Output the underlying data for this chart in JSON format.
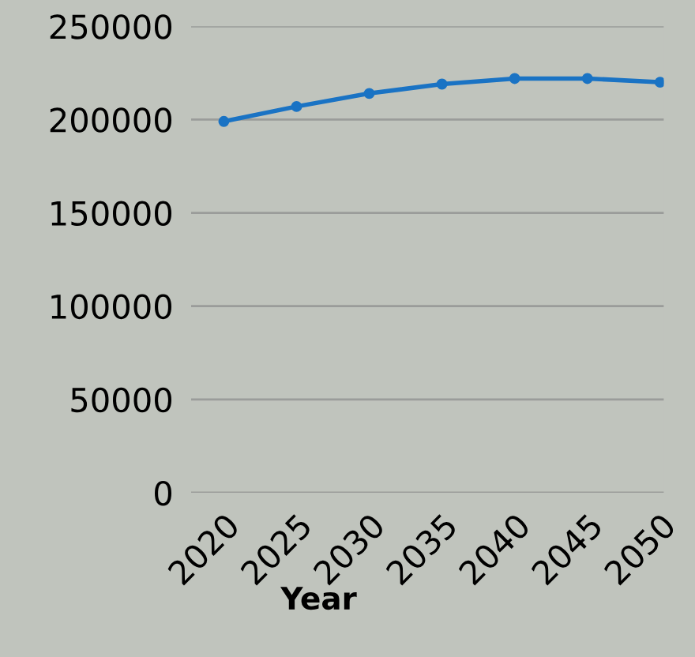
{
  "chart_data": {
    "type": "line",
    "xlabel": "Year",
    "categories": [
      "2020",
      "2025",
      "2030",
      "2035",
      "2040",
      "2045",
      "2050"
    ],
    "series": [
      {
        "color": "#1a73c4",
        "values": [
          199000,
          207000,
          214000,
          219000,
          222000,
          222000,
          220000
        ]
      }
    ],
    "ylim": [
      0,
      250000
    ],
    "yticks": [
      0,
      50000,
      100000,
      150000,
      200000,
      250000
    ],
    "grid": "y",
    "marker": "circle",
    "line_style": "solid",
    "legend": false
  }
}
